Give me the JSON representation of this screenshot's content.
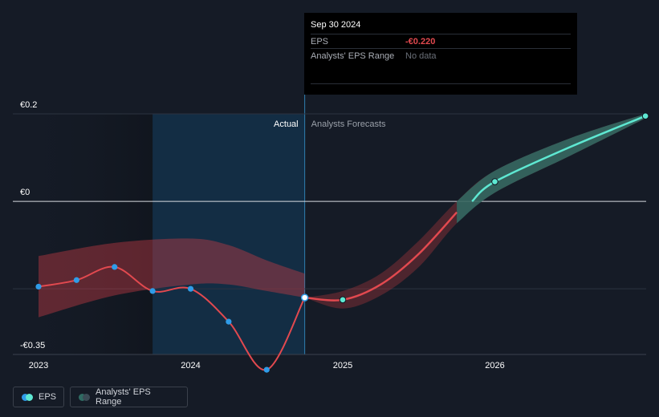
{
  "tooltip": {
    "date": "Sep 30 2024",
    "eps_label": "EPS",
    "eps_value": "-€0.220",
    "range_label": "Analysts' EPS Range",
    "range_value": "No data"
  },
  "regions": {
    "actual_label": "Actual",
    "forecast_label": "Analysts Forecasts"
  },
  "legend": {
    "eps_label": "EPS",
    "range_label": "Analysts' EPS Range"
  },
  "colors": {
    "background": "#151b26",
    "actual_line": "#e2494f",
    "forecast_line": "#5ee8d2",
    "actual_point": "#2f9ce8",
    "forecast_point": "#5ee8d2",
    "range_band_actual": "#c83c45",
    "range_band_forecast": "#2f6b63",
    "highlight_region": "#13304a"
  },
  "chart_data": {
    "type": "line",
    "title": "",
    "xlabel": "",
    "ylabel": "",
    "x_ticks": [
      "2023",
      "2024",
      "2025",
      "2026"
    ],
    "y_ticks": [
      {
        "value": 0.2,
        "label": "€0.2"
      },
      {
        "value": 0,
        "label": "€0"
      },
      {
        "value": -0.35,
        "label": "-€0.35"
      }
    ],
    "xlim": [
      2023.0,
      2026.99
    ],
    "ylim": [
      -0.39,
      0.23
    ],
    "actual_cutoff": 2024.75,
    "highlight_start": 2023.75,
    "series": [
      {
        "name": "EPS",
        "kind": "actual",
        "points": [
          {
            "x": 2023.0,
            "y": -0.195
          },
          {
            "x": 2023.25,
            "y": -0.18
          },
          {
            "x": 2023.5,
            "y": -0.15
          },
          {
            "x": 2023.75,
            "y": -0.205
          },
          {
            "x": 2024.0,
            "y": -0.2
          },
          {
            "x": 2024.25,
            "y": -0.275
          },
          {
            "x": 2024.5,
            "y": -0.385
          },
          {
            "x": 2024.75,
            "y": -0.22
          }
        ]
      },
      {
        "name": "EPS",
        "kind": "forecast",
        "points": [
          {
            "x": 2024.75,
            "y": -0.22
          },
          {
            "x": 2025.0,
            "y": -0.225
          },
          {
            "x": 2025.25,
            "y": -0.19
          },
          {
            "x": 2025.5,
            "y": -0.12
          },
          {
            "x": 2025.75,
            "y": -0.025
          },
          {
            "x": 2026.0,
            "y": 0.045
          },
          {
            "x": 2026.5,
            "y": 0.125
          },
          {
            "x": 2026.99,
            "y": 0.195
          }
        ],
        "markers": [
          {
            "x": 2025.0,
            "y": -0.225
          },
          {
            "x": 2026.0,
            "y": 0.045
          },
          {
            "x": 2026.99,
            "y": 0.195
          }
        ]
      }
    ],
    "range_band_history": {
      "upper": [
        {
          "x": 2023.0,
          "y": -0.125
        },
        {
          "x": 2023.5,
          "y": -0.095
        },
        {
          "x": 2024.0,
          "y": -0.085
        },
        {
          "x": 2024.25,
          "y": -0.1
        },
        {
          "x": 2024.5,
          "y": -0.135
        },
        {
          "x": 2024.75,
          "y": -0.165
        }
      ],
      "lower": [
        {
          "x": 2023.0,
          "y": -0.265
        },
        {
          "x": 2023.5,
          "y": -0.215
        },
        {
          "x": 2024.0,
          "y": -0.19
        },
        {
          "x": 2024.25,
          "y": -0.19
        },
        {
          "x": 2024.5,
          "y": -0.205
        },
        {
          "x": 2024.75,
          "y": -0.22
        }
      ]
    },
    "range_band_forecast": {
      "upper": [
        {
          "x": 2024.75,
          "y": -0.22
        },
        {
          "x": 2025.0,
          "y": -0.205
        },
        {
          "x": 2025.25,
          "y": -0.165
        },
        {
          "x": 2025.5,
          "y": -0.09
        },
        {
          "x": 2025.75,
          "y": 0.0
        },
        {
          "x": 2026.0,
          "y": 0.07
        },
        {
          "x": 2026.5,
          "y": 0.145
        },
        {
          "x": 2026.99,
          "y": 0.2
        }
      ],
      "lower": [
        {
          "x": 2024.75,
          "y": -0.22
        },
        {
          "x": 2025.0,
          "y": -0.245
        },
        {
          "x": 2025.25,
          "y": -0.215
        },
        {
          "x": 2025.5,
          "y": -0.15
        },
        {
          "x": 2025.75,
          "y": -0.05
        },
        {
          "x": 2026.0,
          "y": 0.02
        },
        {
          "x": 2026.5,
          "y": 0.105
        },
        {
          "x": 2026.99,
          "y": 0.19
        }
      ]
    }
  }
}
